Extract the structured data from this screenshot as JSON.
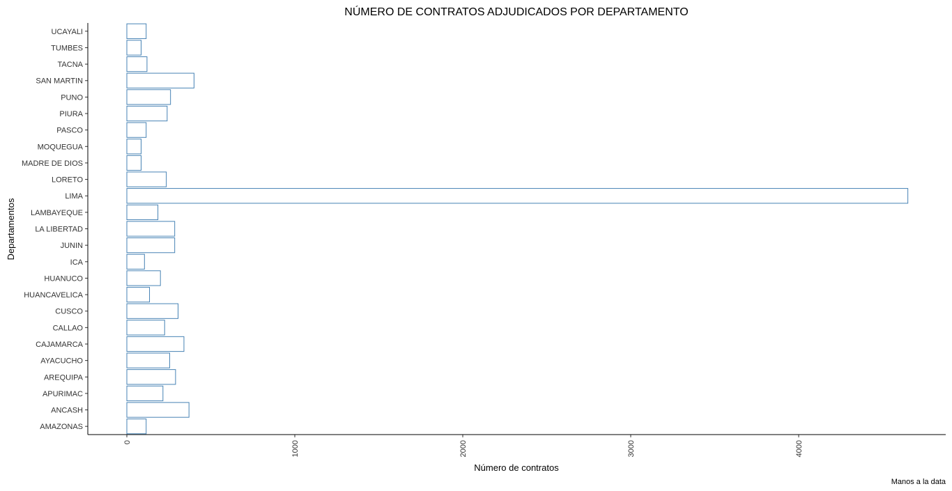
{
  "chart_data": {
    "type": "bar",
    "orientation": "horizontal",
    "title": "NÚMERO DE CONTRATOS ADJUDICADOS POR DEPARTAMENTO",
    "xlabel": "Número de contratos",
    "ylabel": "Departamentos",
    "caption": "Manos a la data",
    "xlim": [
      0,
      4700
    ],
    "x_ticks": [
      "0",
      "1000",
      "2000",
      "3000",
      "4000"
    ],
    "x_tick_values": [
      0,
      1000,
      2000,
      3000,
      4000
    ],
    "grid": false,
    "legend": "none",
    "bar_color": "#ffffff",
    "bar_outline_color": "#4682b4",
    "categories": [
      "AMAZONAS",
      "ANCASH",
      "APURIMAC",
      "AREQUIPA",
      "AYACUCHO",
      "CAJAMARCA",
      "CALLAO",
      "CUSCO",
      "HUANCAVELICA",
      "HUANUCO",
      "ICA",
      "JUNIN",
      "LA LIBERTAD",
      "LAMBAYEQUE",
      "LIMA",
      "LORETO",
      "MADRE DE DIOS",
      "MOQUEGUA",
      "PASCO",
      "PIURA",
      "PUNO",
      "SAN MARTIN",
      "TACNA",
      "TUMBES",
      "UCAYALI"
    ],
    "values": [
      115,
      370,
      215,
      290,
      255,
      340,
      225,
      305,
      135,
      200,
      105,
      285,
      285,
      185,
      4650,
      235,
      85,
      85,
      115,
      240,
      260,
      400,
      120,
      85,
      115
    ]
  }
}
